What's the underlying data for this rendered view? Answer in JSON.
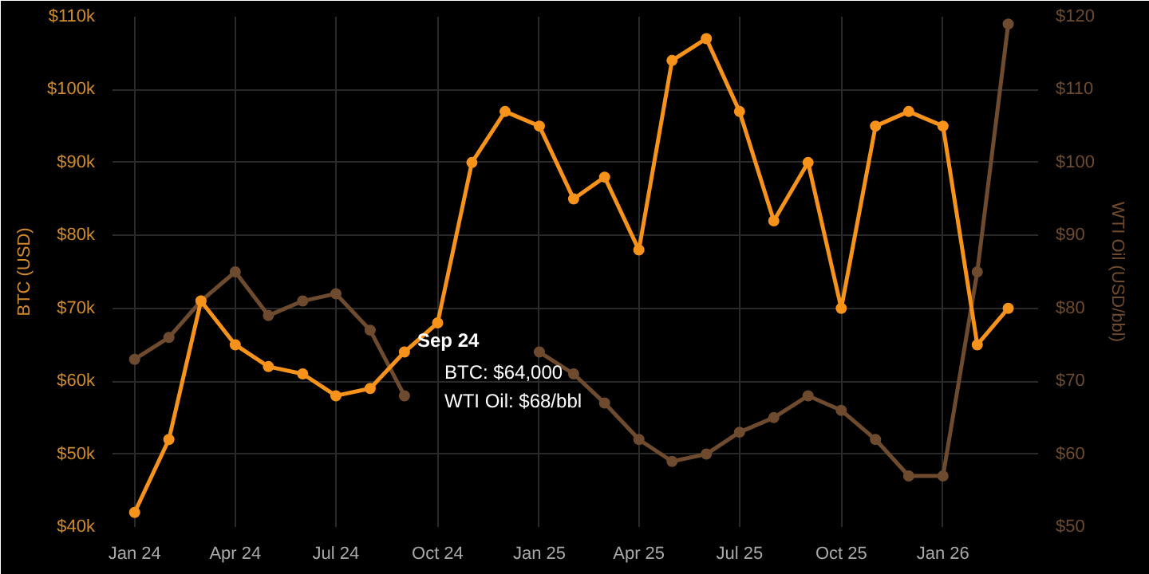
{
  "chart_data": {
    "type": "line",
    "x": [
      "2024-01",
      "2024-02",
      "2024-03",
      "2024-04",
      "2024-05",
      "2024-06",
      "2024-07",
      "2024-08",
      "2024-09",
      "2024-10",
      "2024-11",
      "2024-12",
      "2025-01",
      "2025-02",
      "2025-03",
      "2025-04",
      "2025-05",
      "2025-06",
      "2025-07",
      "2025-08",
      "2025-09",
      "2025-10",
      "2025-11",
      "2025-12",
      "2026-01",
      "2026-02",
      "2026-03"
    ],
    "series": [
      {
        "color": "#f7931a",
        "values": [
          42000,
          52000,
          71000,
          65000,
          62000,
          61000,
          58000,
          59000,
          64000,
          68000,
          90000,
          97000,
          95000,
          85000,
          88000,
          78000,
          104000,
          107000,
          97000,
          82000,
          90000,
          70000,
          95000,
          97000,
          95000,
          65000,
          70000
        ]
      },
      {
        "color": "#6e4b2e",
        "axis": "y2",
        "values": [
          73,
          76,
          81,
          85,
          79,
          81,
          82,
          77,
          68,
          null,
          null,
          null,
          74,
          71,
          67,
          62,
          59,
          60,
          63,
          65,
          68,
          66,
          62,
          57,
          57,
          85,
          119
        ]
      }
    ],
    "ylabel": "BTC (USD)",
    "y2label": "WTI Oil (USD/bbl)",
    "ylim": [
      40000,
      110000
    ],
    "yticks": [
      {
        "value": 40000,
        "label": "$40k"
      },
      {
        "value": 50000,
        "label": "$50k"
      },
      {
        "value": 60000,
        "label": "$60k"
      },
      {
        "value": 70000,
        "label": "$70k"
      },
      {
        "value": 80000,
        "label": "$80k"
      },
      {
        "value": 90000,
        "label": "$90k"
      },
      {
        "value": 100000,
        "label": "$100k"
      },
      {
        "value": 110000,
        "label": "$110k"
      }
    ],
    "y2lim": [
      50,
      120
    ],
    "y2ticks": [
      {
        "value": 50,
        "label": "$50"
      },
      {
        "value": 60,
        "label": "$60"
      },
      {
        "value": 70,
        "label": "$70"
      },
      {
        "value": 80,
        "label": "$80"
      },
      {
        "value": 90,
        "label": "$90"
      },
      {
        "value": 100,
        "label": "$100"
      },
      {
        "value": 110,
        "label": "$110"
      },
      {
        "value": 120,
        "label": "$120"
      }
    ],
    "xlim": [
      "2023-12-12",
      "2026-03-28"
    ],
    "xticks": [
      {
        "value": "2024-01",
        "label": "Jan 24"
      },
      {
        "value": "2024-04",
        "label": "Apr 24"
      },
      {
        "value": "2024-07",
        "label": "Jul 24"
      },
      {
        "value": "2024-10",
        "label": "Oct 24"
      },
      {
        "value": "2025-01",
        "label": "Jan 25"
      },
      {
        "value": "2025-04",
        "label": "Apr 25"
      },
      {
        "value": "2025-07",
        "label": "Jul 25"
      },
      {
        "value": "2025-10",
        "label": "Oct 25"
      },
      {
        "value": "2026-01",
        "label": "Jan 26"
      }
    ],
    "annotations": [
      "Sep 24",
      "BTC: $64,000",
      "WTI Oil: $68/bbl"
    ],
    "grid": true,
    "marker": "circle",
    "line_style": "solid"
  }
}
